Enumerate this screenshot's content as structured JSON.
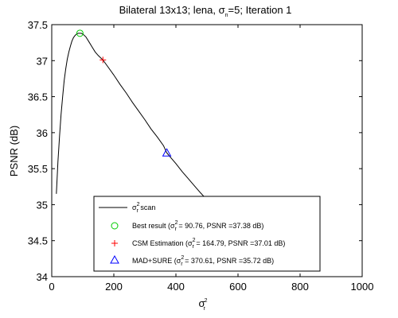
{
  "chart_data": {
    "type": "line",
    "title": {
      "prefix": "Bilateral 13x13; lena, σ",
      "sub": "n",
      "suffix": "=5; Iteration 1"
    },
    "xlabel": {
      "base": "σ",
      "sup": "2",
      "sub": "r"
    },
    "ylabel": "PSNR (dB)",
    "xlim": [
      0,
      1000
    ],
    "ylim": [
      34,
      37.5
    ],
    "xticks": [
      0,
      200,
      400,
      600,
      800,
      1000
    ],
    "xtick_labels": [
      "0",
      "200",
      "400",
      "600",
      "800",
      "1000"
    ],
    "yticks": [
      34,
      34.5,
      35,
      35.5,
      36,
      36.5,
      37,
      37.5
    ],
    "ytick_labels": [
      "34",
      "34.5",
      "35",
      "35.5",
      "36",
      "36.5",
      "37",
      "37.5"
    ],
    "grid": false,
    "legend_position": "bottom-right",
    "series": [
      {
        "name_base": "σ",
        "name_sup": "2",
        "name_sub": "r",
        "name_suffix": " scan",
        "color": "#000000",
        "x": [
          15,
          20,
          25,
          30,
          35,
          40,
          45,
          50,
          55,
          60,
          65,
          70,
          75,
          80,
          85,
          90,
          95,
          100,
          110,
          120,
          130,
          140,
          150,
          164.79,
          180,
          200,
          220,
          240,
          260,
          280,
          300,
          320,
          340,
          360,
          370.61,
          380,
          400,
          420,
          440,
          460,
          480,
          500,
          510
        ],
        "y": [
          35.15,
          35.6,
          35.95,
          36.25,
          36.5,
          36.72,
          36.88,
          37.02,
          37.12,
          37.2,
          37.27,
          37.32,
          37.35,
          37.37,
          37.38,
          37.38,
          37.38,
          37.37,
          37.33,
          37.26,
          37.19,
          37.12,
          37.07,
          37.01,
          36.92,
          36.8,
          36.67,
          36.55,
          36.42,
          36.3,
          36.18,
          36.05,
          35.94,
          35.82,
          35.72,
          35.67,
          35.57,
          35.46,
          35.36,
          35.26,
          35.16,
          35.07,
          35.03
        ]
      }
    ],
    "markers": [
      {
        "label_prefix": "Best result (σ",
        "label_sup": "2",
        "label_sub": "r",
        "label_suffix": " = 90.76, PSNR =37.38 dB)",
        "x": 90.76,
        "y": 37.38,
        "symbol": "circle",
        "color": "#00cc00"
      },
      {
        "label_prefix": "CSM Estimation (σ",
        "label_sup": "2",
        "label_sub": "r",
        "label_suffix": " = 164.79, PSNR =37.01 dB)",
        "x": 164.79,
        "y": 37.01,
        "symbol": "plus",
        "color": "#ff0000"
      },
      {
        "label_prefix": "MAD+SURE (σ",
        "label_sup": "2",
        "label_sub": "r",
        "label_suffix": " = 370.61, PSNR =35.72 dB)",
        "x": 370.61,
        "y": 35.72,
        "symbol": "triangle",
        "color": "#0000ff"
      }
    ]
  }
}
